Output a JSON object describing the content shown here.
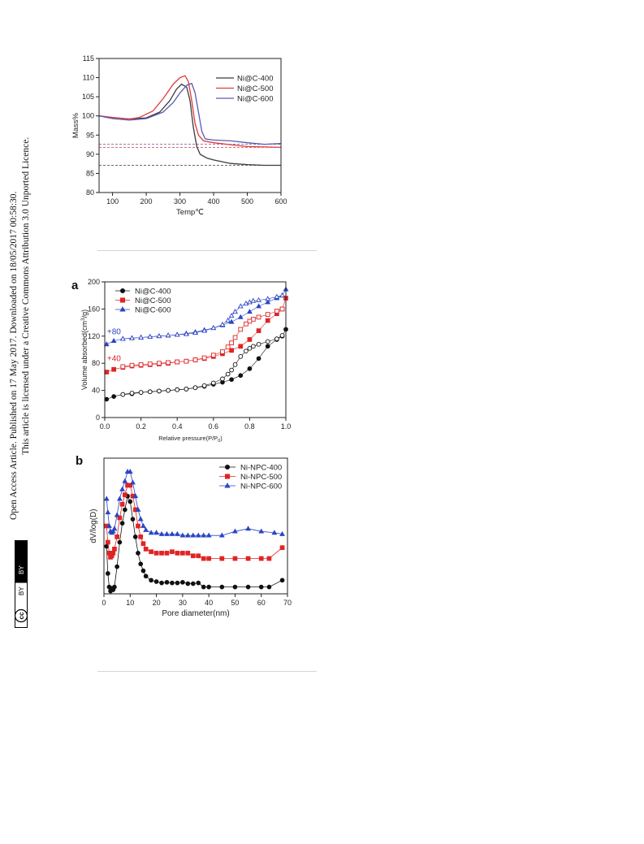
{
  "sidebar": {
    "line1": "Open Access Article. Published on 17 May 2017. Downloaded on 18/05/2017 00:58:30.",
    "line2": "This article is licensed under a Creative Commons Attribution 3.0 Unported Licence.",
    "badge_cc": "cc",
    "badge_by": "BY"
  },
  "chart_data": [
    {
      "type": "line",
      "xlabel": "Temp℃",
      "ylabel": "Mass%",
      "xlim": [
        60,
        600
      ],
      "ylim": [
        80,
        115
      ],
      "xticks": [
        100,
        200,
        300,
        400,
        500,
        600
      ],
      "yticks": [
        80,
        85,
        90,
        95,
        100,
        105,
        110,
        115
      ],
      "legend": "top-right",
      "series": [
        {
          "name": "Ni@C-400",
          "color": "#3a3a3a",
          "x": [
            60,
            100,
            150,
            200,
            240,
            270,
            290,
            305,
            320,
            330,
            340,
            350,
            360,
            380,
            400,
            450,
            500,
            550,
            600
          ],
          "y": [
            100,
            99.6,
            99.2,
            99.5,
            101,
            104,
            107,
            108.3,
            107.5,
            104,
            97,
            92,
            90,
            89,
            88.5,
            87.6,
            87.3,
            87.1,
            87.1
          ],
          "asymptote": 87.1
        },
        {
          "name": "Ni@C-500",
          "color": "#e0393a",
          "x": [
            60,
            100,
            150,
            180,
            220,
            250,
            280,
            300,
            315,
            325,
            335,
            345,
            355,
            370,
            400,
            450,
            500,
            550,
            600
          ],
          "y": [
            100,
            99.6,
            99.2,
            99.6,
            101.3,
            104.5,
            108.3,
            110,
            110.5,
            109,
            104,
            98,
            95,
            93.5,
            93,
            92.5,
            92,
            91.9,
            91.8
          ],
          "asymptote": 91.8
        },
        {
          "name": "Ni@C-600",
          "color": "#5a5ab0",
          "x": [
            60,
            100,
            150,
            200,
            250,
            280,
            300,
            320,
            335,
            345,
            355,
            365,
            375,
            400,
            450,
            500,
            550,
            600
          ],
          "y": [
            100,
            99.3,
            98.9,
            99.3,
            101,
            103.5,
            106,
            108,
            108.5,
            106,
            101,
            96,
            94,
            93.7,
            93.5,
            93,
            92.6,
            92.8
          ],
          "asymptote": 92.6
        }
      ]
    },
    {
      "type": "scatter",
      "panel_label": "a",
      "xlabel": "Relative pressure(P/P",
      "xlabel_sub": "0",
      "ylabel": "Volume absorbed(cm",
      "ylabel_sup": "3",
      "ylabel_tail": "/g)",
      "xlim": [
        0,
        1.0
      ],
      "ylim": [
        0,
        200
      ],
      "xticks": [
        0.0,
        0.2,
        0.4,
        0.6,
        0.8,
        1.0
      ],
      "xtick_labels": [
        "0.0",
        "0.2",
        "0.4",
        "0.6",
        "0.8",
        "1.0"
      ],
      "yticks": [
        0,
        40,
        80,
        120,
        160,
        200
      ],
      "legend": "top-left",
      "offset_labels": [
        {
          "text": "+80",
          "x": 0.04,
          "y": 123,
          "color": "#2a45b5"
        },
        {
          "text": "+40",
          "x": 0.04,
          "y": 83,
          "color": "#e02020"
        }
      ],
      "series": [
        {
          "name": "Ni@C-400",
          "color": "#111111",
          "marker": "circle",
          "offset": 0,
          "adsorption": {
            "x": [
              0.01,
              0.05,
              0.1,
              0.15,
              0.2,
              0.25,
              0.3,
              0.35,
              0.4,
              0.45,
              0.5,
              0.55,
              0.6,
              0.65,
              0.7,
              0.75,
              0.8,
              0.85,
              0.9,
              0.95,
              0.98,
              1.0
            ],
            "y": [
              27,
              31,
              34,
              35,
              37,
              38,
              39,
              40,
              41,
              42,
              44,
              46,
              49,
              52,
              56,
              62,
              72,
              87,
              105,
              115,
              120,
              130
            ]
          },
          "desorption": {
            "x": [
              0.98,
              0.95,
              0.9,
              0.85,
              0.82,
              0.8,
              0.78,
              0.75,
              0.72,
              0.7,
              0.68,
              0.65,
              0.6,
              0.55,
              0.5,
              0.45,
              0.4,
              0.35,
              0.3,
              0.25,
              0.2,
              0.15,
              0.1
            ],
            "y": [
              121,
              116,
              112,
              108,
              105,
              102,
              98,
              90,
              78,
              70,
              64,
              57,
              51,
              47,
              44,
              42,
              41,
              40,
              39,
              38,
              37,
              36,
              34
            ]
          }
        },
        {
          "name": "Ni@C-500",
          "color": "#e02424",
          "marker": "square",
          "offset": 40,
          "adsorption": {
            "x": [
              0.01,
              0.05,
              0.1,
              0.15,
              0.2,
              0.25,
              0.3,
              0.35,
              0.4,
              0.45,
              0.5,
              0.55,
              0.6,
              0.65,
              0.7,
              0.75,
              0.8,
              0.85,
              0.9,
              0.95,
              0.98,
              1.0
            ],
            "y": [
              67,
              71,
              74,
              76,
              77,
              78,
              79,
              80,
              82,
              83,
              85,
              87,
              90,
              94,
              99,
              105,
              115,
              128,
              143,
              153,
              160,
              176
            ]
          },
          "desorption": {
            "x": [
              0.98,
              0.95,
              0.9,
              0.85,
              0.82,
              0.8,
              0.78,
              0.75,
              0.72,
              0.7,
              0.68,
              0.65,
              0.6,
              0.55,
              0.5,
              0.45,
              0.4,
              0.35,
              0.3,
              0.25,
              0.2,
              0.15,
              0.1
            ],
            "y": [
              160,
              157,
              152,
              148,
              145,
              142,
              138,
              130,
              118,
              110,
              104,
              97,
              92,
              88,
              85,
              83,
              82,
              81,
              80,
              79,
              78,
              77,
              75
            ]
          }
        },
        {
          "name": "Ni@C-600",
          "color": "#2a45c5",
          "marker": "triangle",
          "offset": 80,
          "adsorption": {
            "x": [
              0.01,
              0.05,
              0.1,
              0.15,
              0.2,
              0.25,
              0.3,
              0.35,
              0.4,
              0.45,
              0.5,
              0.55,
              0.6,
              0.65,
              0.7,
              0.75,
              0.8,
              0.85,
              0.9,
              0.95,
              0.98,
              1.0
            ],
            "y": [
              108,
              113,
              116,
              117,
              118,
              119,
              120,
              121,
              122,
              124,
              126,
              129,
              132,
              136,
              141,
              148,
              156,
              164,
              170,
              176,
              180,
              189
            ]
          },
          "desorption": {
            "x": [
              0.98,
              0.95,
              0.9,
              0.85,
              0.82,
              0.8,
              0.78,
              0.75,
              0.72,
              0.7,
              0.68,
              0.65,
              0.6,
              0.55,
              0.5,
              0.45,
              0.4,
              0.35,
              0.3,
              0.25,
              0.2,
              0.15,
              0.1
            ],
            "y": [
              180,
              178,
              175,
              173,
              172,
              170,
              168,
              164,
              156,
              150,
              143,
              137,
              132,
              128,
              125,
              123,
              122,
              121,
              120,
              119,
              118,
              117,
              116
            ]
          }
        }
      ]
    },
    {
      "type": "line",
      "panel_label": "b",
      "xlabel": "Pore diameter(nm)",
      "ylabel": "dV/log(D)",
      "xlim": [
        0,
        70
      ],
      "xticks": [
        0,
        10,
        20,
        30,
        40,
        50,
        60,
        70
      ],
      "y_ticks_shown": false,
      "legend": "top-right",
      "series": [
        {
          "name": "Ni-NPC-400",
          "color": "#111111",
          "marker": "circle",
          "x": [
            1,
            1.5,
            2,
            2.5,
            3,
            3.5,
            4,
            5,
            6,
            7,
            8,
            9,
            10,
            11,
            12,
            13,
            14,
            15,
            16,
            18,
            20,
            22,
            24,
            26,
            28,
            30,
            32,
            34,
            36,
            38,
            40,
            45,
            50,
            55,
            60,
            63,
            68
          ],
          "y": [
            0.35,
            0.15,
            0.05,
            0.02,
            0.04,
            0.03,
            0.05,
            0.2,
            0.38,
            0.52,
            0.62,
            0.72,
            0.68,
            0.55,
            0.42,
            0.3,
            0.22,
            0.17,
            0.13,
            0.1,
            0.09,
            0.08,
            0.085,
            0.08,
            0.08,
            0.085,
            0.075,
            0.075,
            0.08,
            0.05,
            0.05,
            0.05,
            0.05,
            0.05,
            0.05,
            0.05,
            0.1
          ]
        },
        {
          "name": "Ni-NPC-500",
          "color": "#e02424",
          "marker": "square",
          "x": [
            1,
            1.5,
            2,
            2.5,
            3,
            3.5,
            4,
            5,
            6,
            7,
            8,
            9,
            10,
            11,
            12,
            13,
            14,
            15,
            16,
            18,
            20,
            22,
            24,
            26,
            28,
            30,
            32,
            34,
            36,
            38,
            40,
            45,
            50,
            55,
            60,
            63,
            68
          ],
          "y": [
            0.5,
            0.38,
            0.3,
            0.27,
            0.28,
            0.3,
            0.33,
            0.42,
            0.56,
            0.66,
            0.73,
            0.8,
            0.8,
            0.72,
            0.62,
            0.5,
            0.42,
            0.37,
            0.33,
            0.31,
            0.3,
            0.3,
            0.3,
            0.31,
            0.3,
            0.3,
            0.3,
            0.28,
            0.28,
            0.26,
            0.26,
            0.26,
            0.26,
            0.26,
            0.26,
            0.26,
            0.34
          ]
        },
        {
          "name": "Ni-NPC-600",
          "color": "#2a45c5",
          "marker": "triangle",
          "x": [
            1,
            1.5,
            2,
            2.5,
            3,
            3.5,
            4,
            5,
            6,
            7,
            8,
            9,
            10,
            11,
            12,
            13,
            14,
            15,
            16,
            18,
            20,
            22,
            24,
            26,
            28,
            30,
            32,
            34,
            36,
            38,
            40,
            45,
            50,
            55,
            60,
            65,
            68
          ],
          "y": [
            0.7,
            0.6,
            0.5,
            0.46,
            0.45,
            0.46,
            0.48,
            0.58,
            0.7,
            0.77,
            0.83,
            0.9,
            0.9,
            0.82,
            0.72,
            0.62,
            0.55,
            0.5,
            0.47,
            0.45,
            0.45,
            0.44,
            0.44,
            0.44,
            0.44,
            0.43,
            0.43,
            0.43,
            0.43,
            0.43,
            0.43,
            0.43,
            0.46,
            0.48,
            0.46,
            0.45,
            0.44
          ]
        }
      ]
    }
  ]
}
